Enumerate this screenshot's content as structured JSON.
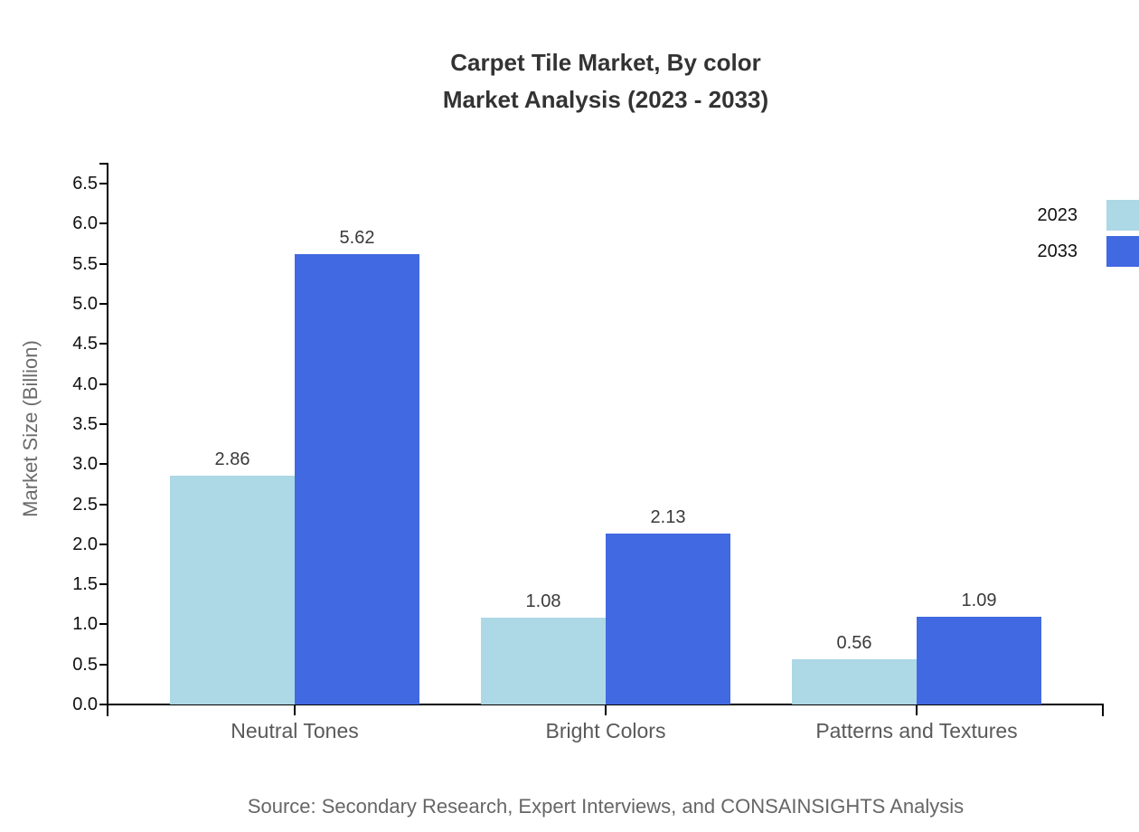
{
  "chart_data": {
    "type": "bar",
    "title": "Carpet Tile Market, By color",
    "subtitle": "Market Analysis (2023 - 2033)",
    "categories": [
      "Neutral Tones",
      "Bright Colors",
      "Patterns and Textures"
    ],
    "series": [
      {
        "name": "2023",
        "color": "#ADD8E6",
        "values": [
          2.86,
          1.08,
          0.56
        ],
        "value_labels": [
          "2.86",
          "1.08",
          "0.56"
        ]
      },
      {
        "name": "2033",
        "color": "#4169E1",
        "values": [
          5.62,
          2.13,
          1.09
        ],
        "value_labels": [
          "5.62",
          "2.13",
          "1.09"
        ]
      }
    ],
    "xlabel": "",
    "ylabel": "Market Size (Billion)",
    "ylim": [
      0,
      6.75
    ],
    "yticks": [
      "0.0",
      "0.5",
      "1.0",
      "1.5",
      "2.0",
      "2.5",
      "3.0",
      "3.5",
      "4.0",
      "4.5",
      "5.0",
      "5.5",
      "6.0",
      "6.5"
    ],
    "grid": false,
    "legend_position": "top-right",
    "axis_color": "#000000"
  },
  "source": "Source: Secondary Research, Expert Interviews, and CONSAINSIGHTS Analysis"
}
